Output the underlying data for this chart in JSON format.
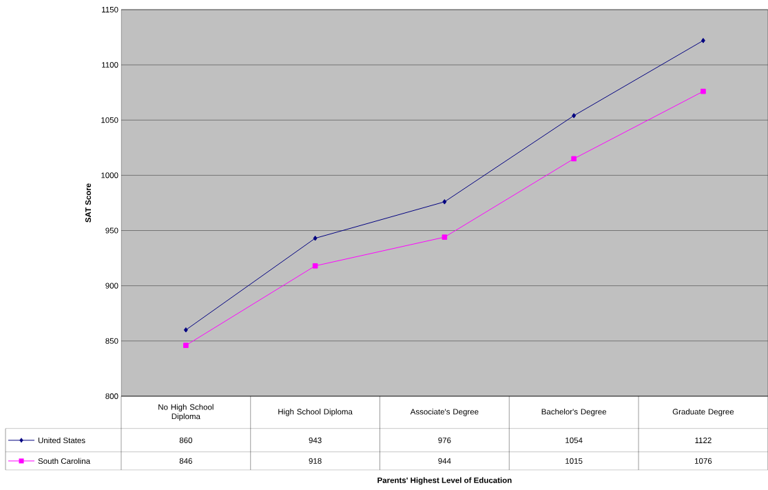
{
  "chart_data": {
    "type": "line",
    "annotations": [
      "Parents' Highest Level of Education"
    ],
    "ylabel": "SAT Score",
    "categories": [
      "No High School Diploma",
      "High School Diploma",
      "Associate's Degree",
      "Bachelor's Degree",
      "Graduate Degree"
    ],
    "series": [
      {
        "name": "United States",
        "color": "#000080",
        "marker": "diamond",
        "values": [
          860,
          943,
          976,
          1054,
          1122
        ]
      },
      {
        "name": "South Carolina",
        "color": "#ff00ff",
        "marker": "square",
        "values": [
          846,
          918,
          944,
          1015,
          1076
        ]
      }
    ],
    "ylim": [
      800,
      1150
    ],
    "yticks": [
      800,
      850,
      900,
      950,
      1000,
      1050,
      1100,
      1150
    ],
    "grid": "y",
    "legend": "bottom left",
    "data_labels": true
  }
}
